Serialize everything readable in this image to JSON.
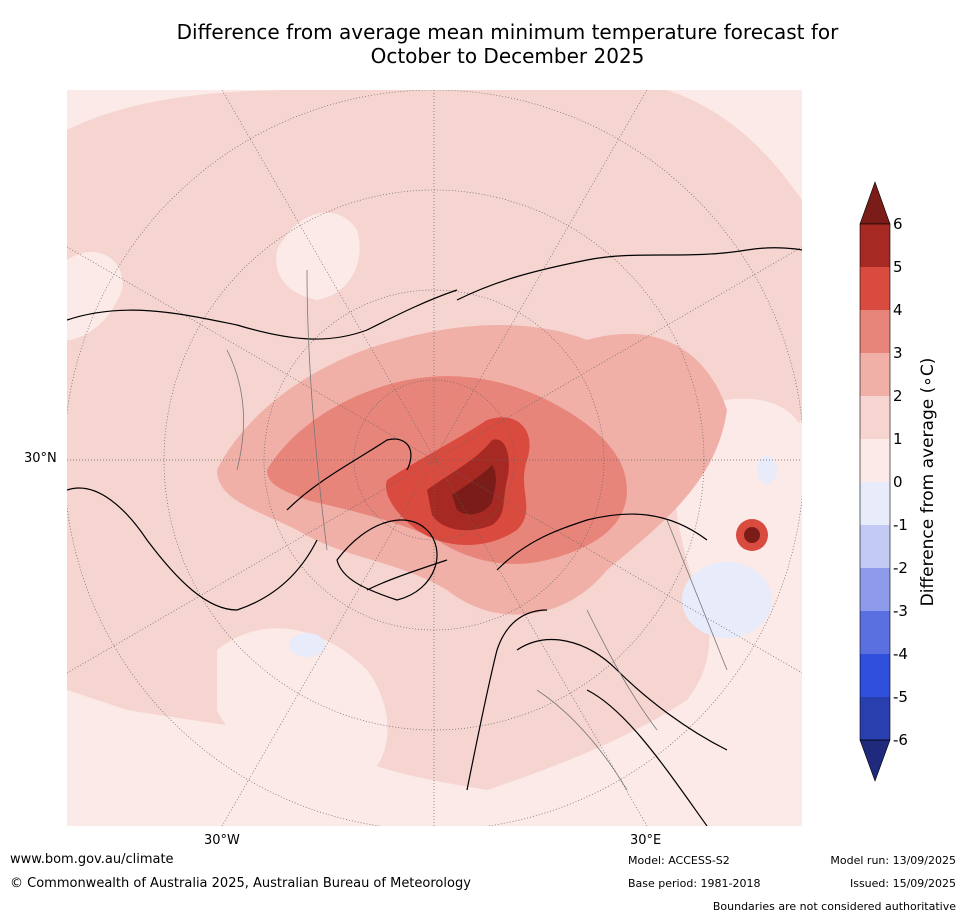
{
  "title_line1": "Difference from average mean minimum temperature forecast for",
  "title_line2": "October to December 2025",
  "map": {
    "projection": "north-polar-stereographic",
    "graticule_labels": {
      "left_lat": "30°N",
      "bottom_lon_west": "30°W",
      "bottom_lon_east": "30°E"
    }
  },
  "colorbar": {
    "label": "Difference from average (∘C)",
    "ticks": [
      "6",
      "5",
      "4",
      "3",
      "2",
      "1",
      "0",
      "-1",
      "-2",
      "-3",
      "-4",
      "-5",
      "-6"
    ],
    "colors": {
      "above_6": "#7a1c17",
      "5_6": "#a62a23",
      "4_5": "#d94a3f",
      "3_4": "#e8857b",
      "2_3": "#f0b0a8",
      "1_2": "#f6d5d1",
      "0_1": "#fbeae7",
      "-1_0": "#e8ebfa",
      "-2_-1": "#c3caf3",
      "-3_-2": "#8e9bea",
      "-4_-3": "#5a6fe0",
      "-5_-4": "#2f4fdc",
      "-6_-5": "#2a3fae",
      "below_-6": "#1f2a7d"
    }
  },
  "footer": {
    "url": "www.bom.gov.au/climate",
    "copyright": "© Commonwealth of Australia 2025, Australian Bureau of Meteorology",
    "model": "Model: ACCESS-S2",
    "base_period": "Base period: 1981-2018",
    "model_run": "Model run: 13/09/2025",
    "issued": "Issued: 15/09/2025",
    "disclaimer": "Boundaries are not considered authoritative"
  }
}
